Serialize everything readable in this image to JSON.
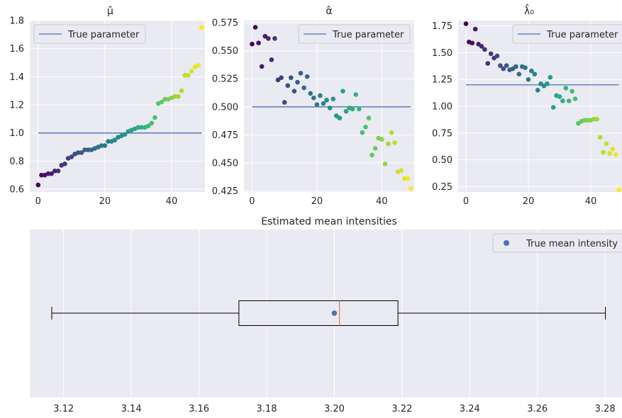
{
  "colors": {
    "axes_bg": "#eaeaf2",
    "grid": "#ffffff",
    "reference_line": "#4c72b0",
    "median_line": "#dd8452",
    "true_mean_point": "#4c72b0"
  },
  "colormap": "viridis",
  "chart_data": [
    {
      "id": "mu",
      "type": "scatter",
      "title": "μ̂",
      "xlim": [
        -2.5,
        50
      ],
      "ylim": [
        0.58,
        1.8
      ],
      "xticks": [
        0,
        20,
        40
      ],
      "yticks": [
        0.6,
        0.8,
        1.0,
        1.2,
        1.4,
        1.6,
        1.8
      ],
      "ytick_labels": [
        "0.6",
        "0.8",
        "1.0",
        "1.2",
        "1.4",
        "1.6",
        "1.8"
      ],
      "reference_y": 1.0,
      "legend": {
        "label": "True parameter",
        "loc": "upper left"
      },
      "x": [
        0,
        1,
        2,
        3,
        4,
        5,
        6,
        7,
        8,
        9,
        10,
        11,
        12,
        13,
        14,
        15,
        16,
        17,
        18,
        19,
        20,
        21,
        22,
        23,
        24,
        25,
        26,
        27,
        28,
        29,
        30,
        31,
        32,
        33,
        34,
        35,
        36,
        37,
        38,
        39,
        40,
        41,
        42,
        43,
        44,
        45,
        46,
        47,
        48,
        49
      ],
      "values": [
        0.63,
        0.7,
        0.7,
        0.71,
        0.71,
        0.73,
        0.73,
        0.77,
        0.78,
        0.82,
        0.83,
        0.85,
        0.86,
        0.86,
        0.88,
        0.88,
        0.88,
        0.89,
        0.9,
        0.91,
        0.91,
        0.94,
        0.94,
        0.95,
        0.97,
        0.98,
        0.99,
        1.01,
        1.02,
        1.03,
        1.04,
        1.04,
        1.04,
        1.05,
        1.07,
        1.11,
        1.21,
        1.22,
        1.24,
        1.24,
        1.25,
        1.26,
        1.26,
        1.3,
        1.41,
        1.41,
        1.44,
        1.47,
        1.48,
        1.75
      ]
    },
    {
      "id": "alpha",
      "type": "scatter",
      "title": "α̂",
      "xlim": [
        -2.5,
        50
      ],
      "ylim": [
        0.424,
        0.577
      ],
      "xticks": [
        0,
        20,
        40
      ],
      "yticks": [
        0.425,
        0.45,
        0.475,
        0.5,
        0.525,
        0.55,
        0.575
      ],
      "ytick_labels": [
        "0.425",
        "0.450",
        "0.475",
        "0.500",
        "0.525",
        "0.550",
        "0.575"
      ],
      "reference_y": 0.5,
      "legend": {
        "label": "True parameter",
        "loc": "upper right"
      },
      "x": [
        0,
        1,
        2,
        3,
        4,
        5,
        6,
        7,
        8,
        9,
        10,
        11,
        12,
        13,
        14,
        15,
        16,
        17,
        18,
        19,
        20,
        21,
        22,
        23,
        24,
        25,
        26,
        27,
        28,
        29,
        30,
        31,
        32,
        33,
        34,
        35,
        36,
        37,
        38,
        39,
        40,
        41,
        42,
        43,
        44,
        45,
        46,
        47,
        48,
        49
      ],
      "values": [
        0.556,
        0.571,
        0.557,
        0.536,
        0.563,
        0.561,
        0.542,
        0.561,
        0.524,
        0.526,
        0.504,
        0.519,
        0.526,
        0.514,
        0.522,
        0.53,
        0.517,
        0.527,
        0.512,
        0.508,
        0.502,
        0.51,
        0.503,
        0.506,
        0.499,
        0.507,
        0.492,
        0.49,
        0.514,
        0.496,
        0.499,
        0.498,
        0.511,
        0.498,
        0.477,
        0.482,
        0.49,
        0.457,
        0.463,
        0.472,
        0.471,
        0.449,
        0.467,
        0.477,
        0.468,
        0.442,
        0.443,
        0.436,
        0.436,
        0.427
      ]
    },
    {
      "id": "lambda0",
      "type": "scatter",
      "title": "λ̂₀",
      "xlim": [
        -2.5,
        50
      ],
      "ylim": [
        0.2,
        1.8
      ],
      "xticks": [
        0,
        20,
        40
      ],
      "yticks": [
        0.25,
        0.5,
        0.75,
        1.0,
        1.25,
        1.5,
        1.75
      ],
      "ytick_labels": [
        "0.25",
        "0.50",
        "0.75",
        "1.00",
        "1.25",
        "1.50",
        "1.75"
      ],
      "reference_y": 1.2,
      "legend": {
        "label": "True parameter",
        "loc": "upper right"
      },
      "x": [
        0,
        1,
        2,
        3,
        4,
        5,
        6,
        7,
        8,
        9,
        10,
        11,
        12,
        13,
        14,
        15,
        16,
        17,
        18,
        19,
        20,
        21,
        22,
        23,
        24,
        25,
        26,
        27,
        28,
        29,
        30,
        31,
        32,
        33,
        34,
        35,
        36,
        37,
        38,
        39,
        40,
        41,
        42,
        43,
        44,
        45,
        46,
        47,
        48,
        49
      ],
      "values": [
        1.77,
        1.6,
        1.59,
        1.72,
        1.58,
        1.56,
        1.53,
        1.4,
        1.49,
        1.45,
        1.47,
        1.38,
        1.35,
        1.38,
        1.34,
        1.35,
        1.37,
        1.3,
        1.37,
        1.36,
        1.25,
        1.33,
        1.3,
        1.15,
        1.21,
        1.19,
        1.21,
        1.27,
        0.99,
        1.1,
        1.09,
        1.05,
        1.17,
        1.05,
        1.14,
        1.07,
        0.84,
        0.86,
        0.87,
        0.87,
        0.87,
        0.88,
        0.88,
        0.71,
        0.57,
        0.65,
        0.56,
        0.6,
        0.55,
        0.22
      ]
    },
    {
      "id": "intensity",
      "type": "box",
      "title": "Estimated mean intensities",
      "xlim": [
        3.11,
        3.285
      ],
      "xticks": [
        3.12,
        3.14,
        3.16,
        3.18,
        3.2,
        3.22,
        3.24,
        3.26,
        3.28
      ],
      "xtick_labels": [
        "3.12",
        "3.14",
        "3.16",
        "3.18",
        "3.20",
        "3.22",
        "3.24",
        "3.26",
        "3.28"
      ],
      "box": {
        "whisker_low": 3.1165,
        "q1": 3.1718,
        "median": 3.2015,
        "q3": 3.2188,
        "whisker_high": 3.2801
      },
      "true_mean": 3.2,
      "legend": {
        "label": "True mean intensity",
        "loc": "upper right"
      }
    }
  ]
}
